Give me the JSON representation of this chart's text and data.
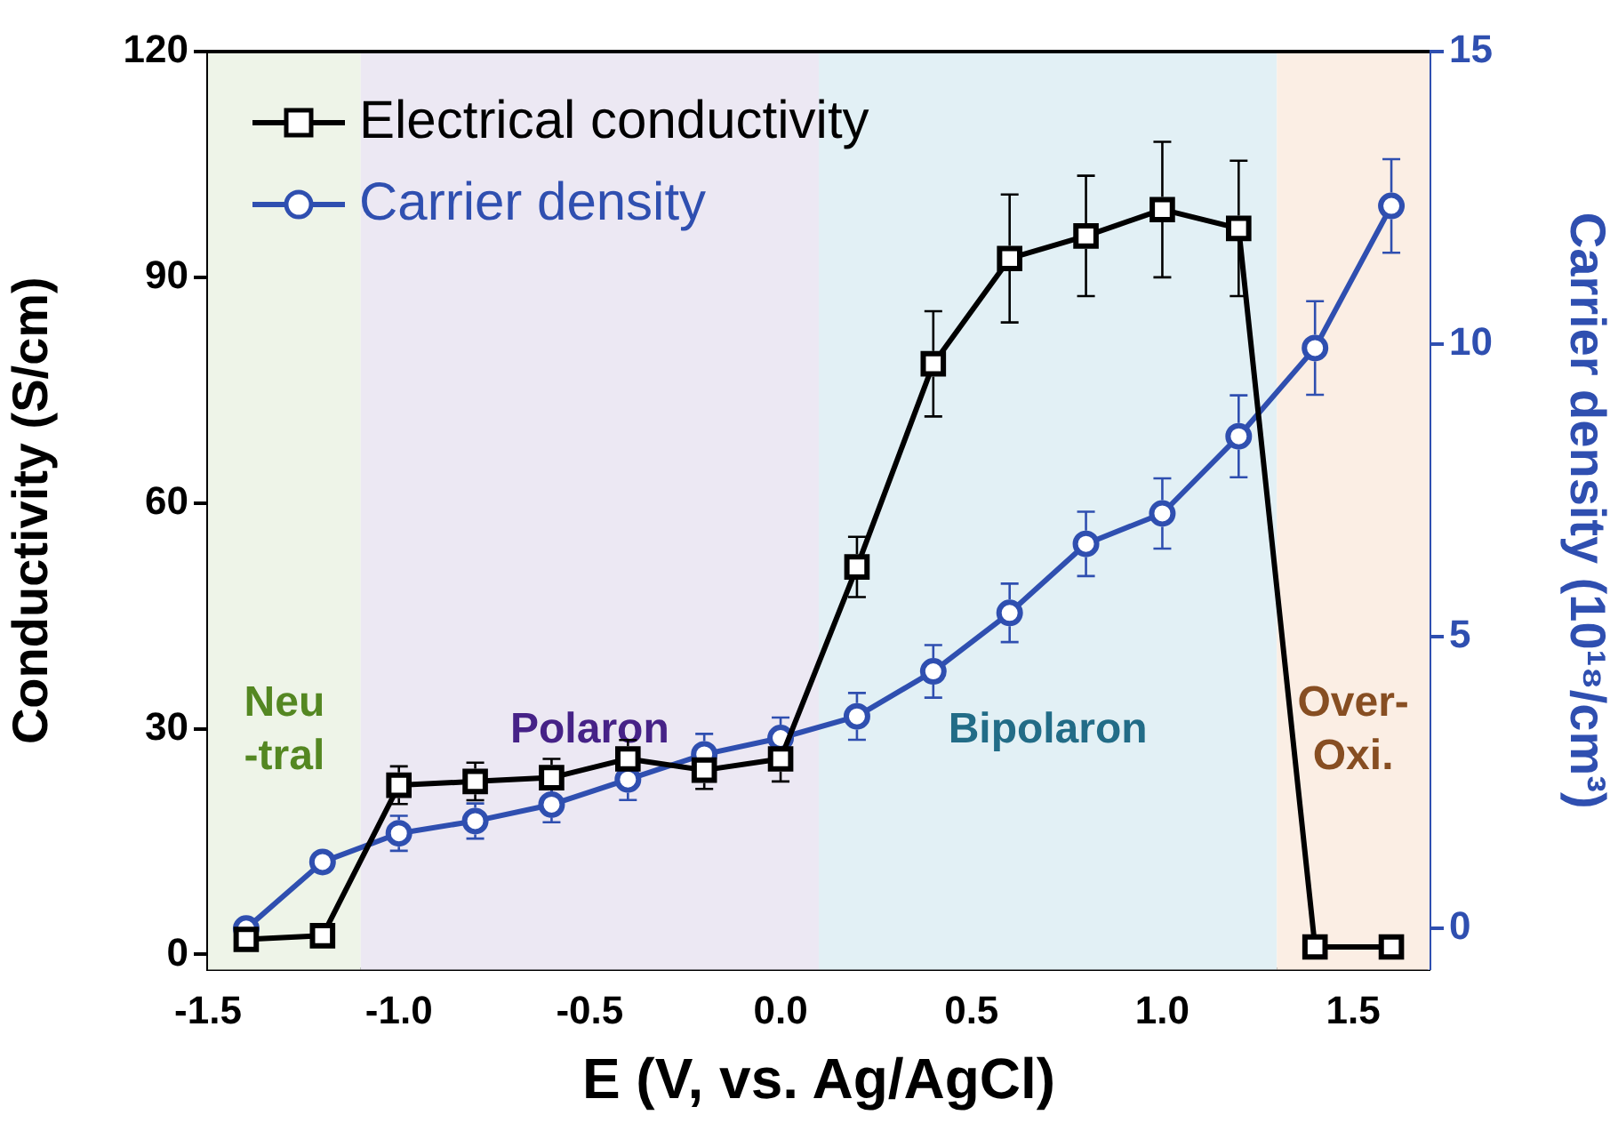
{
  "chart_data": {
    "type": "line",
    "xlabel": "E (V, vs. Ag/AgCl)",
    "ylabel": "Conductivity (S/cm)",
    "y2label": "Carrier density (10¹⁸/cm³)",
    "x": [
      -1.4,
      -1.2,
      -1.0,
      -0.8,
      -0.6,
      -0.4,
      -0.2,
      0.0,
      0.2,
      0.4,
      0.6,
      0.8,
      1.0,
      1.2,
      1.4,
      1.6
    ],
    "series": [
      {
        "name": "Electrical conductivity",
        "color": "#000000",
        "marker": "square",
        "values": [
          2,
          2.5,
          22.5,
          23,
          23.5,
          26,
          24.5,
          26,
          51.5,
          78.5,
          92.5,
          95.5,
          99,
          96.5,
          1,
          1
        ],
        "errors": [
          null,
          null,
          2.5,
          2.5,
          2.5,
          2.5,
          2.5,
          3,
          4,
          7,
          8.5,
          8,
          9,
          9,
          null,
          null
        ]
      },
      {
        "name": "Carrier density",
        "color": "#2f4fb0",
        "marker": "circle",
        "axis": "y2",
        "values": [
          0,
          1.14,
          1.63,
          1.84,
          2.12,
          2.55,
          2.98,
          3.26,
          3.63,
          4.4,
          5.4,
          6.58,
          7.1,
          8.42,
          9.93,
          12.36
        ],
        "errors": [
          null,
          null,
          0.3,
          0.3,
          0.3,
          0.35,
          0.35,
          0.35,
          0.4,
          0.45,
          0.5,
          0.55,
          0.6,
          0.7,
          0.8,
          0.8
        ]
      }
    ],
    "xlim": [
      -1.5,
      1.7
    ],
    "xticks": [
      -1.5,
      {
        "value": -1,
        "label": "-1.0"
      },
      -0.5,
      {
        "value": 0,
        "label": "0.0"
      },
      0.5,
      {
        "value": 1,
        "label": "1.0"
      },
      1.5
    ],
    "ylim": [
      -2,
      120
    ],
    "yticks": [
      0,
      30,
      60,
      90,
      120
    ],
    "y2lim": [
      -0.7,
      15
    ],
    "y2ticks": [
      0,
      5,
      10,
      15
    ],
    "bands": [
      {
        "axis": "x",
        "from": -1.5,
        "to": -1.1,
        "label": "Neu\n-tral",
        "color": "#eef4e8"
      },
      {
        "axis": "x",
        "from": -1.1,
        "to": 0.1,
        "label": "Polaron",
        "color": "#ece8f3"
      },
      {
        "axis": "x",
        "from": 0.1,
        "to": 1.3,
        "label": "Bipolaron",
        "color": "#e2f0f5"
      },
      {
        "axis": "x",
        "from": 1.3,
        "to": 1.7,
        "label": "Over-\nOxi.",
        "color": "#fbeee4"
      }
    ],
    "grid": false,
    "legend": "top left",
    "line_style": "solid"
  }
}
